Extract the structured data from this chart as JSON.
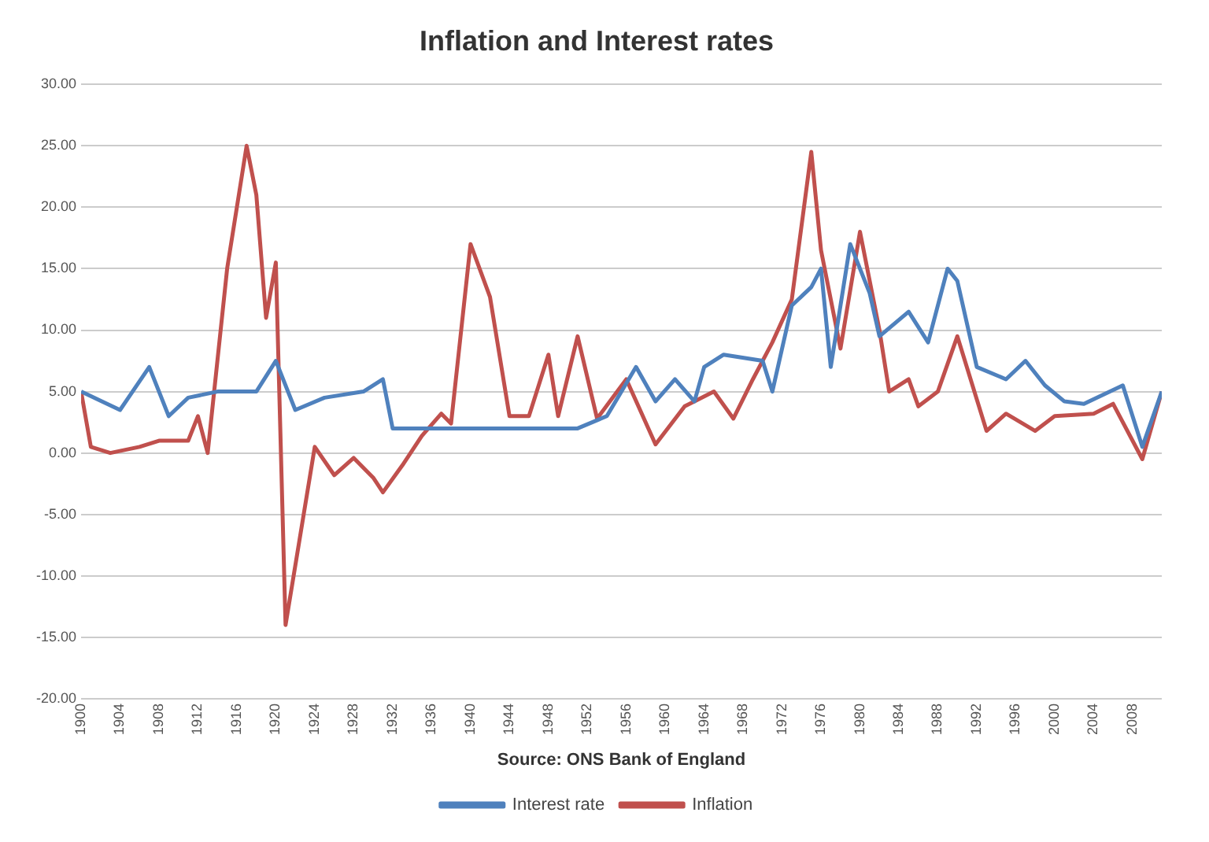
{
  "chart_data": {
    "type": "line",
    "title": "Inflation and Interest rates",
    "annotations": [
      "Source: ONS Bank of England"
    ],
    "series": [
      {
        "name": "Interest rate",
        "color": "#4f81bd",
        "x": [
          1900,
          1904,
          1907,
          1909,
          1911,
          1914,
          1918,
          1920,
          1922,
          1925,
          1929,
          1931,
          1932,
          1951,
          1954,
          1957,
          1959,
          1961,
          1963,
          1964,
          1966,
          1970,
          1971,
          1973,
          1975,
          1976,
          1977,
          1979,
          1981,
          1982,
          1985,
          1987,
          1989,
          1990,
          1992,
          1995,
          1997,
          1999,
          2001,
          2003,
          2007,
          2009,
          2011
        ],
        "values": [
          5,
          3.5,
          7,
          3,
          4.5,
          5,
          5,
          7.5,
          3.5,
          4.5,
          5,
          6,
          2,
          2,
          3,
          7,
          4.2,
          6,
          4.2,
          7,
          8,
          7.5,
          5,
          12,
          13.5,
          15,
          7,
          17,
          13,
          9.5,
          11.5,
          9,
          15,
          14,
          7,
          6,
          7.5,
          5.5,
          4.2,
          4,
          5.5,
          0.5,
          5
        ]
      },
      {
        "name": "Inflation",
        "color": "#c0504d",
        "x": [
          1900,
          1901,
          1903,
          1906,
          1908,
          1911,
          1912,
          1913,
          1915,
          1917,
          1918,
          1919,
          1920,
          1921,
          1924,
          1926,
          1928,
          1930,
          1931,
          1933,
          1935,
          1937,
          1938,
          1940,
          1942,
          1944,
          1946,
          1948,
          1949,
          1951,
          1953,
          1956,
          1959,
          1962,
          1965,
          1967,
          1969,
          1971,
          1973,
          1975,
          1976,
          1978,
          1980,
          1982,
          1983,
          1985,
          1986,
          1988,
          1990,
          1993,
          1995,
          1998,
          2000,
          2004,
          2006,
          2009,
          2011
        ],
        "values": [
          5,
          0.5,
          0,
          0.5,
          1,
          1,
          3,
          0,
          15,
          25,
          21,
          11,
          15.5,
          -14,
          0.5,
          -1.8,
          -0.4,
          -2,
          -3.2,
          -1,
          1.4,
          3.2,
          2.4,
          17,
          12.7,
          3,
          3,
          8,
          3,
          9.5,
          2.8,
          6,
          0.7,
          3.8,
          5,
          2.8,
          6,
          9,
          12.5,
          24.5,
          16.5,
          8.5,
          18,
          10,
          5,
          6,
          3.8,
          5,
          9.5,
          1.8,
          3.2,
          1.8,
          3,
          3.2,
          4,
          -0.5,
          5
        ]
      }
    ],
    "xlim": [
      1900,
      2011
    ],
    "xticks": [
      1900,
      1904,
      1908,
      1912,
      1916,
      1920,
      1924,
      1928,
      1932,
      1936,
      1940,
      1944,
      1948,
      1952,
      1956,
      1960,
      1964,
      1968,
      1972,
      1976,
      1980,
      1984,
      1988,
      1992,
      1996,
      2000,
      2004,
      2008
    ],
    "ylim": [
      -20,
      30
    ],
    "yticks": [
      {
        "value": -20,
        "label": "-20.00"
      },
      {
        "value": -15,
        "label": "-15.00"
      },
      {
        "value": -10,
        "label": "-10.00"
      },
      {
        "value": -5,
        "label": "-5.00"
      },
      {
        "value": 0,
        "label": "0.00"
      },
      {
        "value": 5,
        "label": "5.00"
      },
      {
        "value": 10,
        "label": "10.00"
      },
      {
        "value": 15,
        "label": "15.00"
      },
      {
        "value": 20,
        "label": "20.00"
      },
      {
        "value": 25,
        "label": "25.00"
      },
      {
        "value": 30,
        "label": "30.00"
      }
    ],
    "grid": "y",
    "legend": "bottom",
    "marker": "none",
    "line_style": "solid"
  }
}
